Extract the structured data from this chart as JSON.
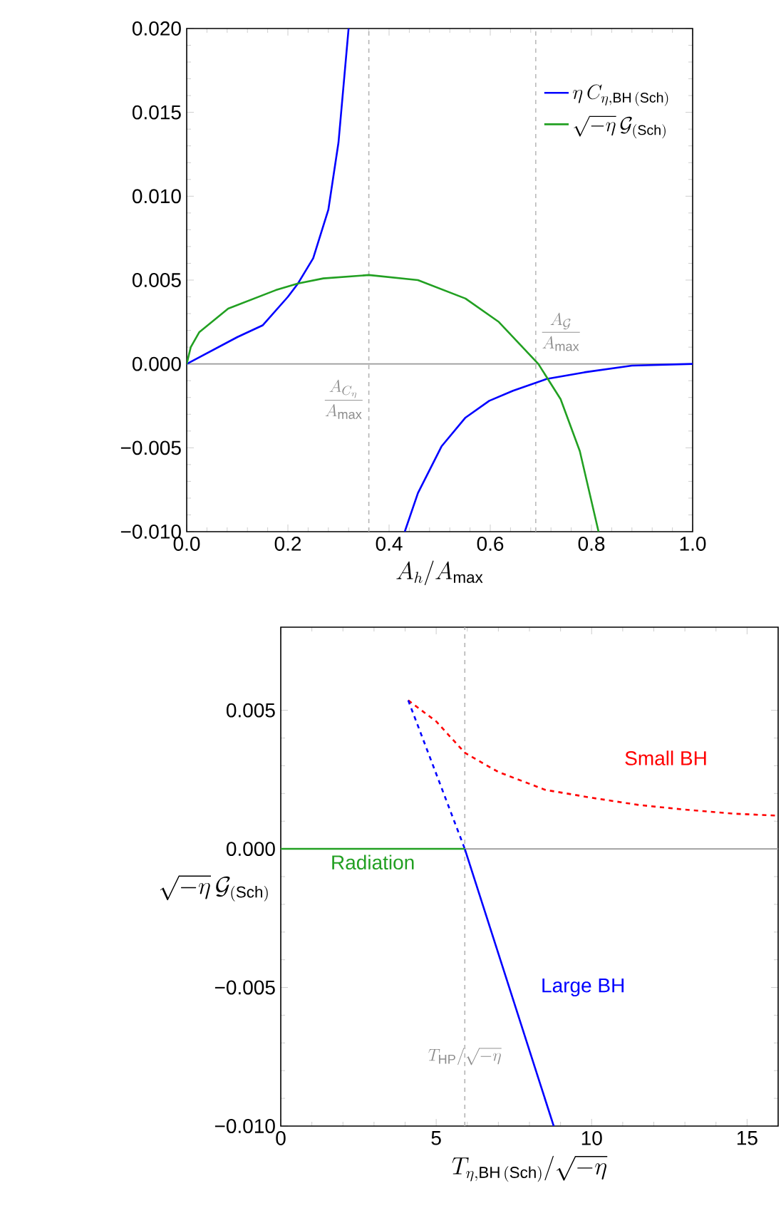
{
  "chart_data": [
    {
      "type": "line",
      "xlabel": "A_h/A_{\\mathrm{max}}",
      "xlim": [
        0,
        1
      ],
      "ylim": [
        -0.01,
        0.02
      ],
      "xticks": [
        {
          "value": 0,
          "label": "0.0"
        },
        0.2,
        0.4,
        0.6,
        0.8,
        {
          "value": 1,
          "label": "1.0"
        }
      ],
      "yticks": [
        {
          "value": -0.01,
          "label": "−0.010"
        },
        {
          "value": -0.005,
          "label": "−0.005"
        },
        {
          "value": 0,
          "label": "0.000"
        },
        {
          "value": 0.005,
          "label": "0.005"
        },
        {
          "value": 0.01,
          "label": "0.010"
        },
        {
          "value": 0.015,
          "label": "0.015"
        },
        {
          "value": 0.02,
          "label": "0.020"
        }
      ],
      "legend": "top right",
      "ref_lines": [
        {
          "axis": "y",
          "value": 0,
          "color": "#999999",
          "line_style": "solid"
        },
        {
          "axis": "x",
          "value": 0.36,
          "label": "\\frac{A_{C_\\eta}}{A_{\\mathrm{max}}}",
          "color": "#b4b4b4",
          "line_style": "dashed"
        },
        {
          "axis": "x",
          "value": 0.69,
          "label": "\\frac{A_{\\mathcal{G}}}{A_{\\mathrm{max}}}",
          "color": "#b4b4b4",
          "line_style": "dashed"
        }
      ],
      "series": [
        {
          "name": "\\eta\\, C_{\\eta,\\mathrm{BH\\,(Sch)}}",
          "color": "#0000ff",
          "x": [
            0,
            0.1,
            0.15,
            0.2,
            0.22,
            0.25,
            0.28,
            0.3,
            0.32,
            0.36,
            0.431,
            0.457,
            0.504,
            0.551,
            0.598,
            0.645,
            0.711,
            0.786,
            0.88,
            1.0
          ],
          "values": [
            0,
            0.0016,
            0.0023,
            0.004,
            0.0048,
            0.0063,
            0.0092,
            0.0132,
            0.02,
            null,
            -0.01,
            -0.0077,
            -0.0049,
            -0.0032,
            -0.0022,
            -0.0016,
            -0.0009,
            -0.0005,
            -0.0001,
            0
          ]
        },
        {
          "name": "\\sqrt{-\\eta}\\,\\mathcal{G}_{\\mathrm{(Sch)}}",
          "color": "#22a022",
          "x": [
            0,
            0.008,
            0.025,
            0.082,
            0.176,
            0.22,
            0.27,
            0.36,
            0.457,
            0.551,
            0.617,
            0.695,
            0.739,
            0.777,
            0.814
          ],
          "values": [
            0,
            0.001,
            0.0019,
            0.0033,
            0.0044,
            0.0048,
            0.0051,
            0.0053,
            0.005,
            0.0039,
            0.0025,
            0,
            -0.0021,
            -0.0052,
            -0.01
          ]
        }
      ]
    },
    {
      "type": "line",
      "xlabel": "T_{\\eta,\\mathrm{BH\\,(Sch)}}/\\sqrt{-\\eta}",
      "ylabel": "\\sqrt{-\\eta}\\,\\mathcal{G}_{\\mathrm{(Sch)}}",
      "xlim": [
        0,
        16
      ],
      "ylim": [
        -0.01,
        0.008
      ],
      "xticks": [
        0,
        5,
        10,
        15
      ],
      "yticks": [
        {
          "value": -0.01,
          "label": "−0.010"
        },
        {
          "value": -0.005,
          "label": "−0.005"
        },
        {
          "value": 0,
          "label": "0.000"
        },
        {
          "value": 0.005,
          "label": "0.005"
        }
      ],
      "legend": false,
      "ref_lines": [
        {
          "axis": "y",
          "value": 0,
          "color": "#999999",
          "line_style": "solid"
        },
        {
          "axis": "x",
          "value": 5.92,
          "label": "T_{\\mathrm{HP}}/\\sqrt{-\\eta}",
          "color": "#b4b4b4",
          "line_style": "dashed"
        }
      ],
      "series": [
        {
          "name": "Small BH",
          "color": "#ff0000",
          "line_style": "dashed",
          "x": [
            4.1,
            5.0,
            5.92,
            6.99,
            8.51,
            10.03,
            11.55,
            13.07,
            14.6,
            15.97
          ],
          "values": [
            0.00536,
            0.0046,
            0.00347,
            0.00278,
            0.00213,
            0.00184,
            0.00158,
            0.00141,
            0.00127,
            0.0012
          ]
        },
        {
          "color": "#0000ff",
          "line_style": "dashed",
          "x": [
            4.1,
            5.92
          ],
          "values": [
            0.00536,
            0
          ]
        },
        {
          "name": "Large BH",
          "color": "#0000ff",
          "line_style": "solid",
          "x": [
            5.92,
            8.78
          ],
          "values": [
            0,
            -0.01
          ]
        },
        {
          "name": "Radiation",
          "color": "#22a022",
          "line_style": "solid",
          "x": [
            0,
            5.92
          ],
          "values": [
            0,
            0
          ]
        }
      ]
    }
  ]
}
